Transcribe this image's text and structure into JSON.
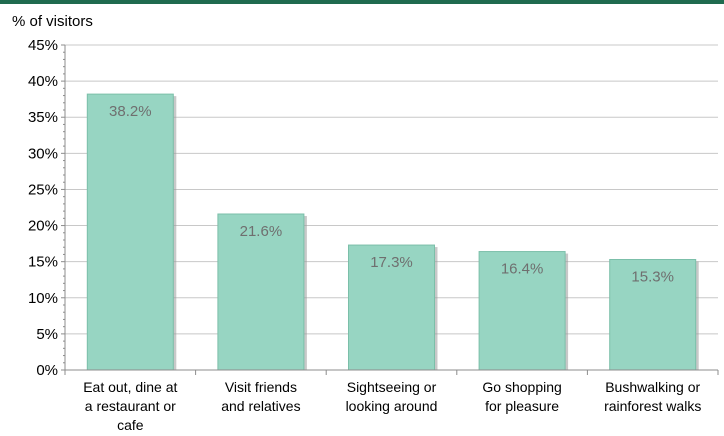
{
  "chart_data": {
    "type": "bar",
    "title": "",
    "ylabel": "% of visitors",
    "xlabel": "",
    "categories": [
      [
        "Eat out, dine at",
        "a restaurant or",
        "cafe"
      ],
      [
        "Visit friends",
        "and relatives"
      ],
      [
        "Sightseeing or",
        "looking around"
      ],
      [
        "Go shopping",
        "for pleasure"
      ],
      [
        "Bushwalking or",
        "rainforest walks"
      ]
    ],
    "values": [
      38.2,
      21.6,
      17.3,
      16.4,
      15.3
    ],
    "value_labels": [
      "38.2%",
      "21.6%",
      "17.3%",
      "16.4%",
      "15.3%"
    ],
    "ylim": [
      0,
      45
    ],
    "yticks": [
      0,
      5,
      10,
      15,
      20,
      25,
      30,
      35,
      40,
      45
    ],
    "ytick_labels": [
      "0%",
      "5%",
      "10%",
      "15%",
      "20%",
      "25%",
      "30%",
      "35%",
      "40%",
      "45%"
    ],
    "grid": true,
    "legend": "none",
    "colors": {
      "bar_fill": "#97d5c2",
      "bar_stroke": "#7bbfa9",
      "bar_shadow": "#9a9a9a",
      "grid": "#c8c8c8",
      "axis": "#8c8c8c",
      "top_bar": "#1f6b4f"
    }
  }
}
